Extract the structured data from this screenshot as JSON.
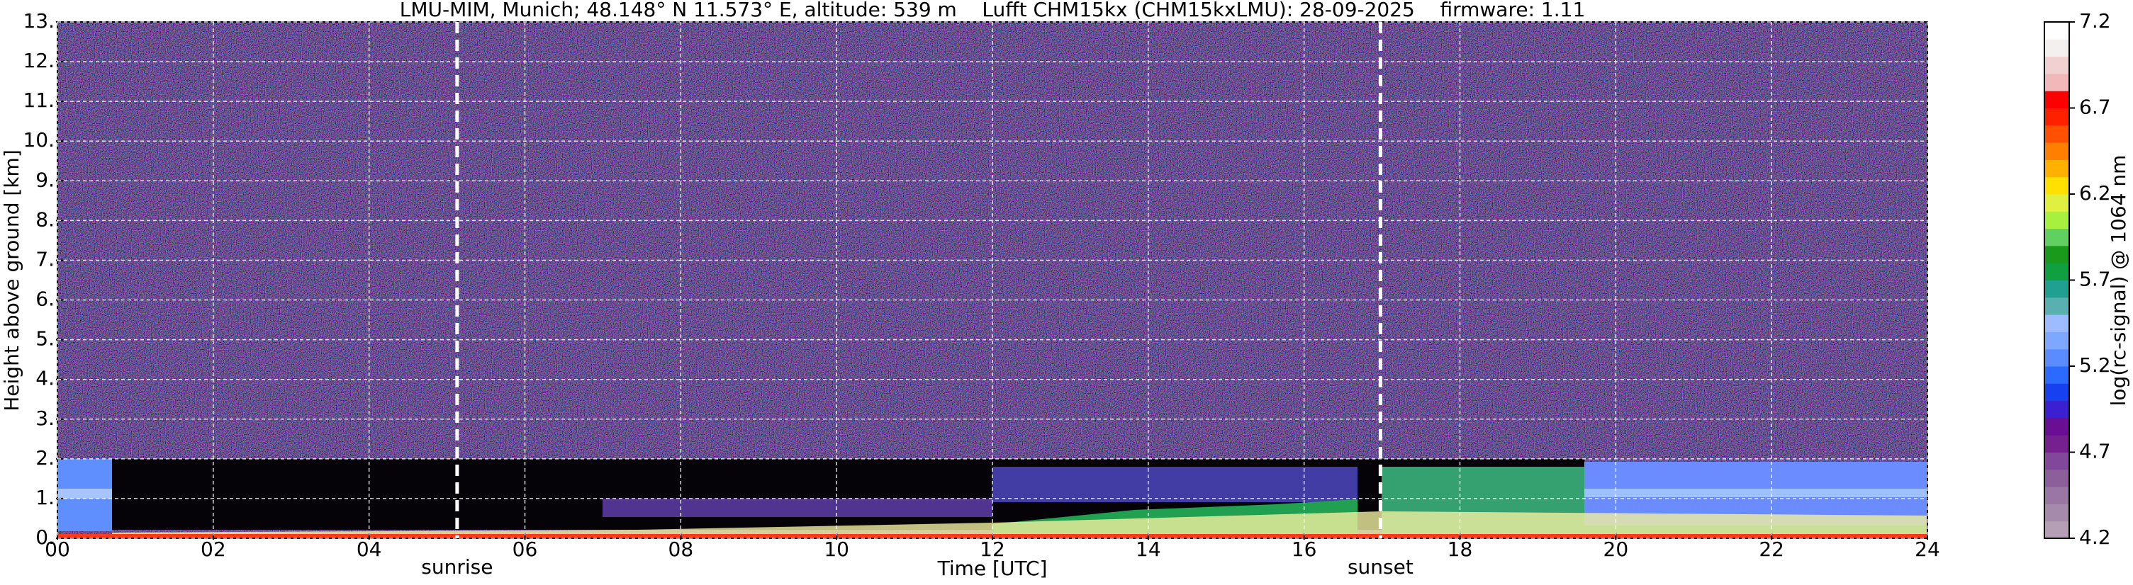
{
  "chart_data": {
    "type": "heatmap",
    "title": "LMU-MIM, Munich; 48.148° N 11.573° E, altitude: 539 m    Lufft CHM15kx (CHM15kxLMU): 28-09-2025    firmware: 1.11",
    "x_label": "Time [UTC]",
    "y_label": "Height above ground [km]",
    "xlim": [
      0,
      24
    ],
    "xticks": [
      {
        "value": 0,
        "label": "00"
      },
      {
        "value": 2,
        "label": "02"
      },
      {
        "value": 4,
        "label": "04"
      },
      {
        "value": 6,
        "label": "06"
      },
      {
        "value": 8,
        "label": "08"
      },
      10,
      12,
      14,
      16,
      18,
      20,
      22,
      24
    ],
    "ylim": [
      0,
      13
    ],
    "yticks": [
      {
        "value": 0,
        "label": "0."
      },
      {
        "value": 1,
        "label": "1."
      },
      {
        "value": 2,
        "label": "2."
      },
      {
        "value": 3,
        "label": "3."
      },
      {
        "value": 4,
        "label": "4."
      },
      {
        "value": 5,
        "label": "5."
      },
      {
        "value": 6,
        "label": "6."
      },
      {
        "value": 7,
        "label": "7."
      },
      {
        "value": 8,
        "label": "8."
      },
      {
        "value": 9,
        "label": "9."
      },
      {
        "value": 10,
        "label": "10."
      },
      {
        "value": 11,
        "label": "11."
      },
      {
        "value": 12,
        "label": "12."
      },
      {
        "value": 13,
        "label": "13."
      }
    ],
    "grid": true,
    "annotations": [
      {
        "text": "sunrise",
        "x": 5.13
      },
      {
        "text": "sunset",
        "x": 16.98
      }
    ],
    "colorbar": {
      "label": "log(rc-signal) @ 1064 nm",
      "clim": [
        4.2,
        7.2
      ],
      "ticks": [
        4.2,
        4.7,
        5.2,
        5.7,
        6.2,
        6.7,
        7.2
      ],
      "colors": [
        "#b49fb4",
        "#a68aab",
        "#9a76a2",
        "#8d5f9a",
        "#80479a",
        "#761f8f",
        "#6a0f94",
        "#3a20d0",
        "#1640f0",
        "#2a6aff",
        "#5a8cff",
        "#7ea8ff",
        "#9dbcff",
        "#58b0b0",
        "#20a090",
        "#10a040",
        "#1a9a1a",
        "#60d060",
        "#a8f040",
        "#e0f040",
        "#ffe000",
        "#ffb000",
        "#ff8000",
        "#ff5000",
        "#ff2000",
        "#ff0000",
        "#f0b8b8",
        "#f0d0d0",
        "#f4f0f0",
        "#ffffff"
      ]
    }
  }
}
